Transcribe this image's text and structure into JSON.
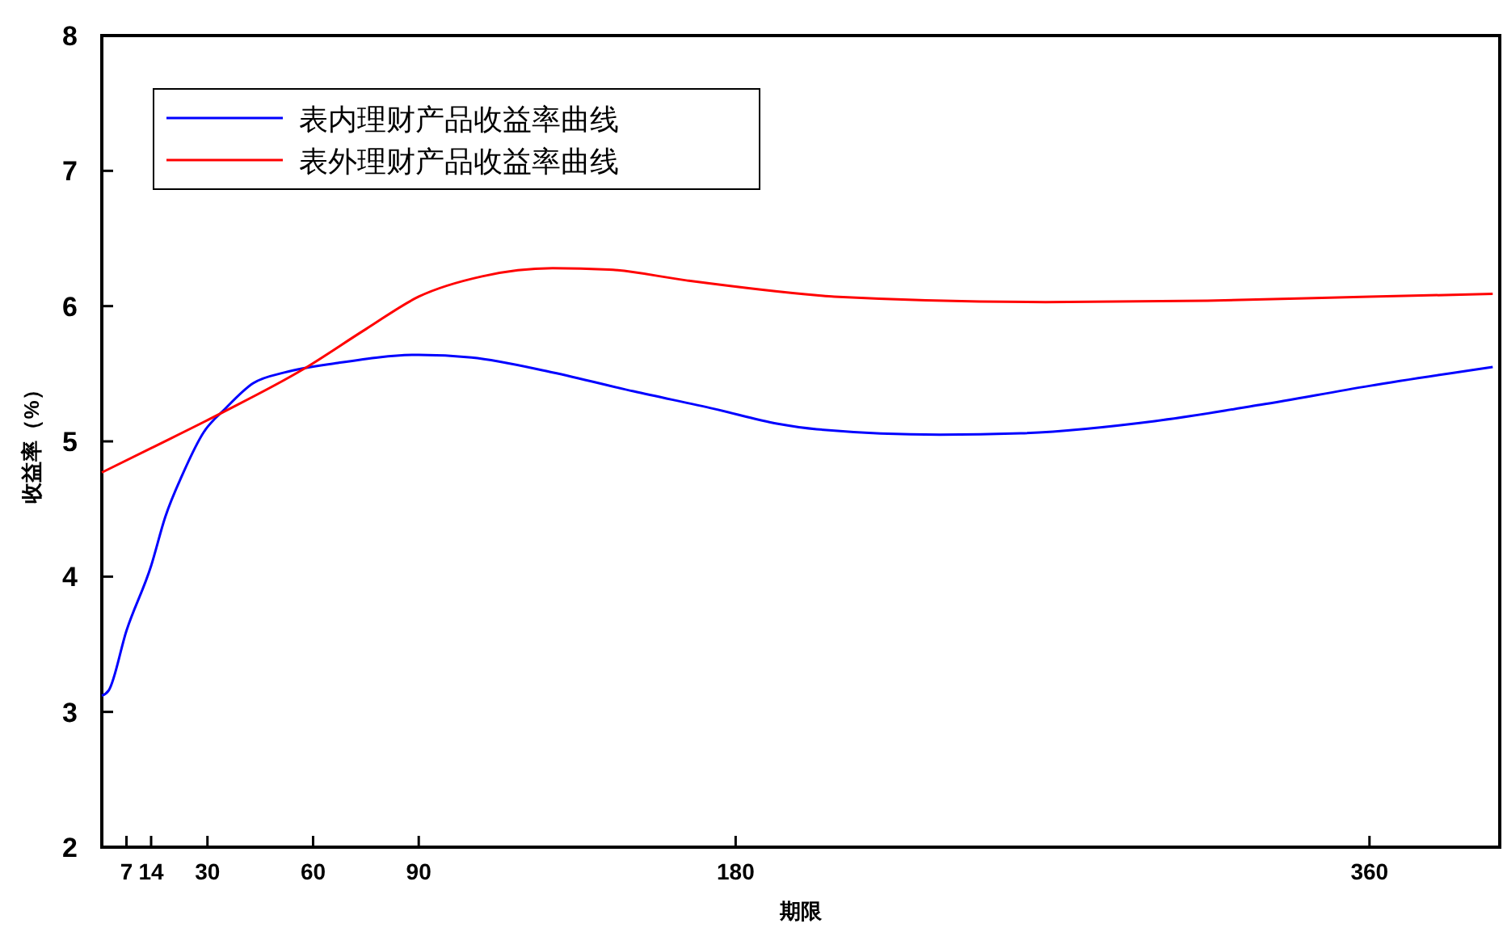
{
  "chart_data": {
    "type": "line",
    "xlabel": "期限",
    "ylabel": "收益率（%）",
    "xlim": [
      0,
      397
    ],
    "ylim": [
      2,
      8
    ],
    "xticks": [
      7,
      14,
      30,
      60,
      90,
      180,
      360
    ],
    "yticks": [
      2,
      3,
      4,
      5,
      6,
      7,
      8
    ],
    "legend": "top left",
    "grid": false,
    "line_style": "solid",
    "marker": "none",
    "series": [
      {
        "name": "表内理财产品收益率曲线",
        "color": "#0000ff",
        "x": [
          0,
          2,
          7,
          14,
          18,
          23,
          29,
          35,
          43,
          52,
          67,
          90,
          105,
          128,
          151,
          174,
          192,
          203,
          238,
          261,
          299,
          329,
          360,
          395
        ],
        "values": [
          3.12,
          3.16,
          3.6,
          4.08,
          4.44,
          4.76,
          5.07,
          5.24,
          5.43,
          5.51,
          5.58,
          5.64,
          5.62,
          5.51,
          5.37,
          5.24,
          5.13,
          5.09,
          5.05,
          5.06,
          5.15,
          5.27,
          5.41,
          5.55
        ]
      },
      {
        "name": "表外理财产品收益率曲线",
        "color": "#ff0000",
        "x": [
          0,
          14,
          34,
          57,
          75,
          90,
          108,
          128,
          144,
          166,
          203,
          208,
          268,
          314,
          360,
          395
        ],
        "values": [
          4.77,
          4.95,
          5.21,
          5.53,
          5.83,
          6.07,
          6.22,
          6.28,
          6.27,
          6.19,
          6.08,
          6.07,
          6.03,
          6.04,
          6.07,
          6.09
        ]
      }
    ]
  }
}
